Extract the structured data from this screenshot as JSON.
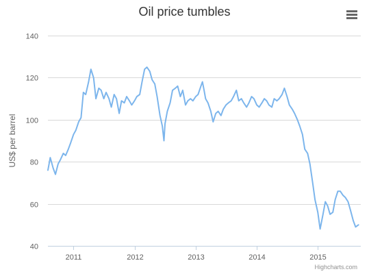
{
  "chart_title": "Oil price tumbles",
  "credits": "Highcharts.com",
  "menu_icon": "hamburger-menu-icon",
  "colors": {
    "series": "#7CB5EC",
    "grid": "#D8D8D8",
    "text": "#606060",
    "title": "#333333"
  },
  "chart_data": {
    "type": "line",
    "title": "Oil price tumbles",
    "xlabel": "",
    "ylabel": "US$ per barrel",
    "ylim": [
      40,
      140
    ],
    "yticks": [
      40,
      60,
      80,
      100,
      120,
      140
    ],
    "xlim": [
      "2010-08-01",
      "2015-09-15"
    ],
    "xticks": [
      {
        "label": "2011",
        "date": "2011-01-01"
      },
      {
        "label": "2012",
        "date": "2012-01-01"
      },
      {
        "label": "2013",
        "date": "2013-01-01"
      },
      {
        "label": "2014",
        "date": "2014-01-01"
      },
      {
        "label": "2015",
        "date": "2015-01-01"
      }
    ],
    "grid": true,
    "legend": "none",
    "series": [
      {
        "points": [
          [
            "2010-08-01",
            76
          ],
          [
            "2010-08-15",
            82
          ],
          [
            "2010-09-01",
            77
          ],
          [
            "2010-09-15",
            74
          ],
          [
            "2010-10-01",
            79
          ],
          [
            "2010-10-15",
            81
          ],
          [
            "2010-11-01",
            84
          ],
          [
            "2010-11-15",
            83
          ],
          [
            "2010-12-01",
            86
          ],
          [
            "2010-12-15",
            89
          ],
          [
            "2011-01-01",
            93
          ],
          [
            "2011-01-15",
            95
          ],
          [
            "2011-02-01",
            99
          ],
          [
            "2011-02-15",
            101
          ],
          [
            "2011-03-01",
            113
          ],
          [
            "2011-03-15",
            112
          ],
          [
            "2011-04-01",
            118
          ],
          [
            "2011-04-15",
            124
          ],
          [
            "2011-05-01",
            120
          ],
          [
            "2011-05-15",
            110
          ],
          [
            "2011-06-01",
            115
          ],
          [
            "2011-06-15",
            114
          ],
          [
            "2011-07-01",
            110
          ],
          [
            "2011-07-15",
            113
          ],
          [
            "2011-08-01",
            110
          ],
          [
            "2011-08-15",
            106
          ],
          [
            "2011-09-01",
            112
          ],
          [
            "2011-09-15",
            110
          ],
          [
            "2011-10-01",
            103
          ],
          [
            "2011-10-15",
            109
          ],
          [
            "2011-11-01",
            108
          ],
          [
            "2011-11-15",
            111
          ],
          [
            "2011-12-01",
            109
          ],
          [
            "2011-12-15",
            107
          ],
          [
            "2012-01-01",
            109
          ],
          [
            "2012-01-15",
            111
          ],
          [
            "2012-02-01",
            112
          ],
          [
            "2012-02-15",
            118
          ],
          [
            "2012-03-01",
            124
          ],
          [
            "2012-03-15",
            125
          ],
          [
            "2012-04-01",
            123
          ],
          [
            "2012-04-15",
            119
          ],
          [
            "2012-05-01",
            117
          ],
          [
            "2012-05-15",
            111
          ],
          [
            "2012-06-01",
            102
          ],
          [
            "2012-06-15",
            97
          ],
          [
            "2012-06-25",
            90
          ],
          [
            "2012-07-01",
            98
          ],
          [
            "2012-07-15",
            104
          ],
          [
            "2012-08-01",
            108
          ],
          [
            "2012-08-15",
            114
          ],
          [
            "2012-09-01",
            115
          ],
          [
            "2012-09-15",
            116
          ],
          [
            "2012-10-01",
            111
          ],
          [
            "2012-10-15",
            114
          ],
          [
            "2012-11-01",
            107
          ],
          [
            "2012-11-15",
            109
          ],
          [
            "2012-12-01",
            110
          ],
          [
            "2012-12-15",
            109
          ],
          [
            "2013-01-01",
            111
          ],
          [
            "2013-01-15",
            112
          ],
          [
            "2013-02-01",
            116
          ],
          [
            "2013-02-10",
            118
          ],
          [
            "2013-02-20",
            114
          ],
          [
            "2013-03-01",
            110
          ],
          [
            "2013-03-15",
            108
          ],
          [
            "2013-04-01",
            104
          ],
          [
            "2013-04-15",
            99
          ],
          [
            "2013-05-01",
            103
          ],
          [
            "2013-05-15",
            104
          ],
          [
            "2013-06-01",
            102
          ],
          [
            "2013-06-15",
            105
          ],
          [
            "2013-07-01",
            107
          ],
          [
            "2013-07-15",
            108
          ],
          [
            "2013-08-01",
            109
          ],
          [
            "2013-08-15",
            111
          ],
          [
            "2013-09-01",
            114
          ],
          [
            "2013-09-15",
            109
          ],
          [
            "2013-10-01",
            110
          ],
          [
            "2013-10-15",
            108
          ],
          [
            "2013-11-01",
            106
          ],
          [
            "2013-11-15",
            108
          ],
          [
            "2013-12-01",
            111
          ],
          [
            "2013-12-15",
            110
          ],
          [
            "2014-01-01",
            107
          ],
          [
            "2014-01-15",
            106
          ],
          [
            "2014-02-01",
            108
          ],
          [
            "2014-02-15",
            110
          ],
          [
            "2014-03-01",
            109
          ],
          [
            "2014-03-15",
            107
          ],
          [
            "2014-04-01",
            106
          ],
          [
            "2014-04-15",
            110
          ],
          [
            "2014-05-01",
            109
          ],
          [
            "2014-05-15",
            110
          ],
          [
            "2014-06-01",
            112
          ],
          [
            "2014-06-15",
            115
          ],
          [
            "2014-07-01",
            111
          ],
          [
            "2014-07-15",
            107
          ],
          [
            "2014-08-01",
            105
          ],
          [
            "2014-08-15",
            103
          ],
          [
            "2014-09-01",
            100
          ],
          [
            "2014-09-15",
            97
          ],
          [
            "2014-10-01",
            93
          ],
          [
            "2014-10-15",
            86
          ],
          [
            "2014-11-01",
            84
          ],
          [
            "2014-11-15",
            79
          ],
          [
            "2014-12-01",
            70
          ],
          [
            "2014-12-15",
            62
          ],
          [
            "2015-01-01",
            56
          ],
          [
            "2015-01-15",
            48
          ],
          [
            "2015-02-01",
            55
          ],
          [
            "2015-02-15",
            61
          ],
          [
            "2015-03-01",
            59
          ],
          [
            "2015-03-15",
            55
          ],
          [
            "2015-04-01",
            56
          ],
          [
            "2015-04-15",
            62
          ],
          [
            "2015-05-01",
            66
          ],
          [
            "2015-05-15",
            66
          ],
          [
            "2015-06-01",
            64
          ],
          [
            "2015-06-15",
            63
          ],
          [
            "2015-07-01",
            61
          ],
          [
            "2015-07-15",
            57
          ],
          [
            "2015-08-01",
            52
          ],
          [
            "2015-08-15",
            49
          ],
          [
            "2015-09-01",
            50
          ]
        ]
      }
    ]
  }
}
